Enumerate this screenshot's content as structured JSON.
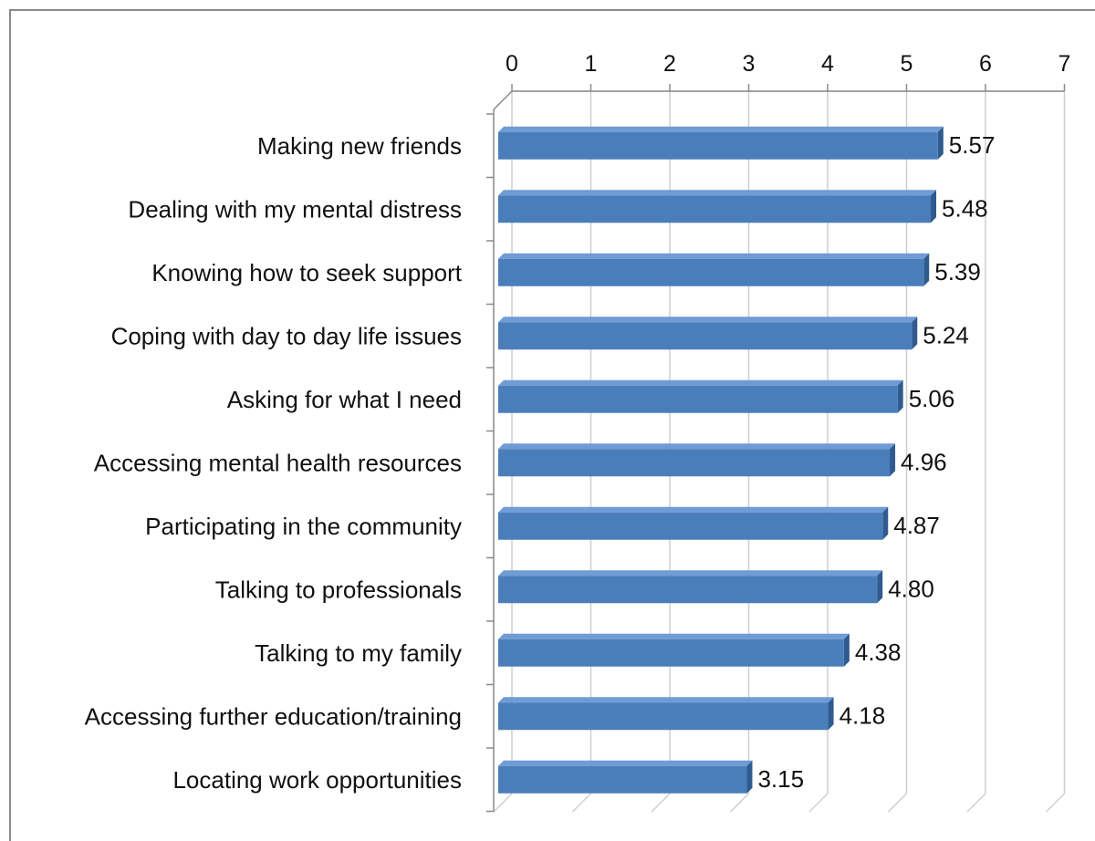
{
  "chart_data": {
    "type": "bar",
    "orientation": "horizontal",
    "style": "3d",
    "categories": [
      "Making new friends",
      "Dealing with my mental distress",
      "Knowing how to seek support",
      "Coping with day to day life issues",
      "Asking for what I need",
      "Accessing mental health resources",
      "Participating in the community",
      "Talking to professionals",
      "Talking to my family",
      "Accessing further education/training",
      "Locating work opportunities"
    ],
    "values": [
      5.57,
      5.48,
      5.39,
      5.24,
      5.06,
      4.96,
      4.87,
      4.8,
      4.38,
      4.18,
      3.15
    ],
    "data_labels": [
      "5.57",
      "5.48",
      "5.39",
      "5.24",
      "5.06",
      "4.96",
      "4.87",
      "4.80",
      "4.38",
      "4.18",
      "3.15"
    ],
    "xlim": [
      0,
      7
    ],
    "x_ticks": [
      "0",
      "1",
      "2",
      "3",
      "4",
      "5",
      "6",
      "7"
    ],
    "x_axis_position": "top",
    "grid": true,
    "legend": "none",
    "title": "",
    "xlabel": "",
    "ylabel": "",
    "colors": {
      "bar_front": "#4a7ebb",
      "bar_top": "#6f9bd6",
      "bar_side": "#2f5b8f",
      "grid": "#cfcfcf",
      "axis": "#8a8a8a"
    }
  }
}
